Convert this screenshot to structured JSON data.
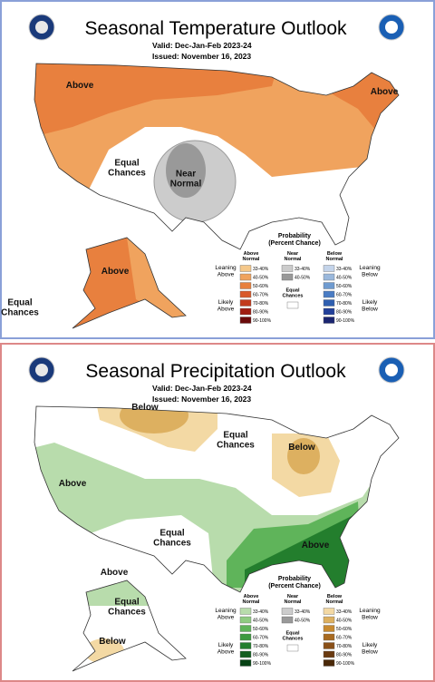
{
  "panels": [
    {
      "title": "Seasonal Temperature Outlook",
      "valid": "Valid:  Dec-Jan-Feb 2023-24",
      "issued": "Issued:  November 16, 2023",
      "map_labels": [
        "Above",
        "Above",
        "Equal Chances",
        "Near Normal",
        "Above",
        "Equal Chances"
      ],
      "legend": {
        "title": "Probability",
        "subtitle": "(Percent Chance)",
        "columns": [
          "Above Normal",
          "Near Normal",
          "Below Normal"
        ],
        "above_ranges": [
          "33-40%",
          "40-50%",
          "50-60%",
          "60-70%",
          "70-80%",
          "80-90%",
          "90-100%"
        ],
        "near_ranges": [
          "33-40%",
          "40-50%"
        ],
        "below_ranges": [
          "33-40%",
          "40-50%",
          "50-60%",
          "60-70%",
          "70-80%",
          "80-90%",
          "90-100%"
        ],
        "equal": "Equal Chances",
        "left_labels": [
          "Leaning Above",
          "Likely Above"
        ],
        "right_labels": [
          "Leaning Below",
          "Likely Below"
        ]
      }
    },
    {
      "title": "Seasonal Precipitation Outlook",
      "valid": "Valid:  Dec-Jan-Feb 2023-24",
      "issued": "Issued:  November 16, 2023",
      "map_labels": [
        "Below",
        "Equal Chances",
        "Below",
        "Above",
        "Equal Chances",
        "Above",
        "Above",
        "Equal Chances",
        "Below"
      ],
      "legend": {
        "title": "Probability",
        "subtitle": "(Percent Chance)",
        "columns": [
          "Above Normal",
          "Near Normal",
          "Below Normal"
        ],
        "above_ranges": [
          "33-40%",
          "40-50%",
          "50-60%",
          "60-70%",
          "70-80%",
          "80-90%",
          "90-100%"
        ],
        "near_ranges": [
          "33-40%",
          "40-50%"
        ],
        "below_ranges": [
          "33-40%",
          "40-50%",
          "50-60%",
          "60-70%",
          "70-80%",
          "80-90%",
          "90-100%"
        ],
        "equal": "Equal Chances",
        "left_labels": [
          "Leaning Above",
          "Likely Above"
        ],
        "right_labels": [
          "Leaning Below",
          "Likely Below"
        ]
      }
    }
  ]
}
